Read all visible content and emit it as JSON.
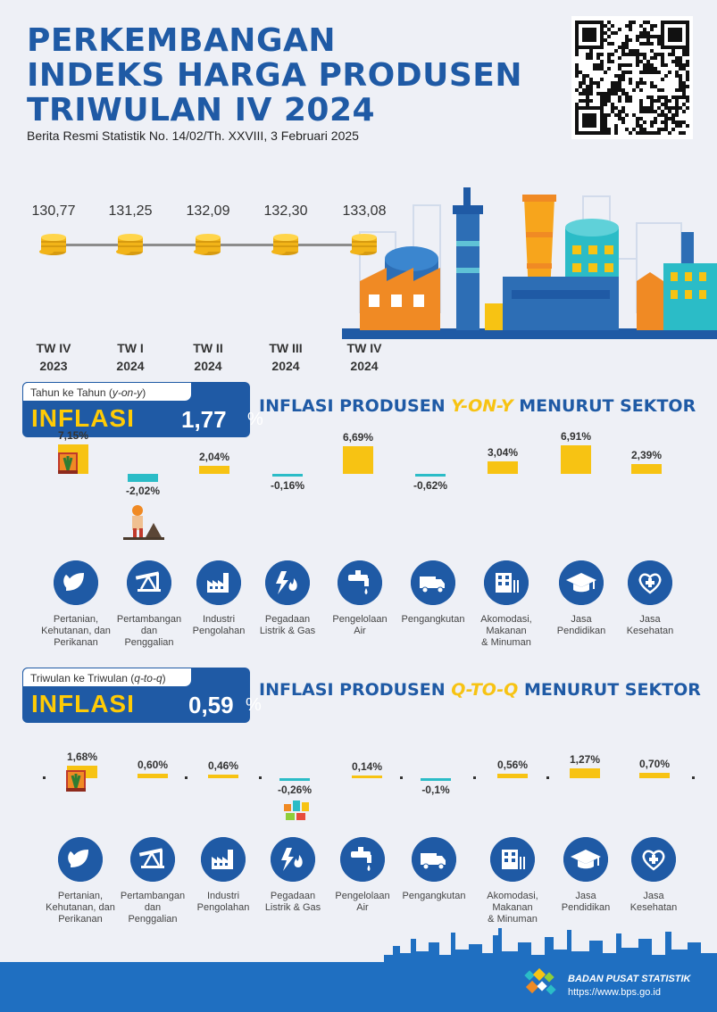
{
  "header": {
    "title_lines": [
      "PERKEMBANGAN",
      "INDEKS HARGA PRODUSEN",
      "TRIWULAN IV 2024"
    ],
    "subtitle": "Berita Resmi Statistik No. 14/02/Th. XXVIII, 3 Februari 2025"
  },
  "ihp_timeline": {
    "values": [
      "130,77",
      "131,25",
      "132,09",
      "132,30",
      "133,08"
    ],
    "periods": [
      {
        "tw": "TW IV",
        "year": "2023"
      },
      {
        "tw": "TW I",
        "year": "2024"
      },
      {
        "tw": "TW II",
        "year": "2024"
      },
      {
        "tw": "TW III",
        "year": "2024"
      },
      {
        "tw": "TW IV",
        "year": "2024"
      }
    ]
  },
  "yoy": {
    "box_caption": "Tahun ke Tahun (",
    "box_caption_em": "y-on-y",
    "box_caption_end": ")",
    "label": "INFLASI",
    "value": "1,77",
    "pct": "%",
    "heading_pre": "INFLASI PRODUSEN ",
    "heading_hl": "Y-ON-Y",
    "heading_post": " MENURUT SEKTOR",
    "labels": [
      "7,15%",
      "-2,02%",
      "2,04%",
      "-0,16%",
      "6,69%",
      "-0,62%",
      "3,04%",
      "6,91%",
      "2,39%"
    ],
    "values": [
      7.15,
      -2.02,
      2.04,
      -0.16,
      6.69,
      -0.62,
      3.04,
      6.91,
      2.39
    ]
  },
  "qtq": {
    "box_caption": "Triwulan ke Triwulan (",
    "box_caption_em": "q-to-q",
    "box_caption_end": ")",
    "label": "INFLASI",
    "value": "0,59",
    "pct": "%",
    "heading_pre": "INFLASI PRODUSEN ",
    "heading_hl": "Q-TO-Q",
    "heading_post": " MENURUT SEKTOR",
    "labels": [
      "1,68%",
      "0,60%",
      "0,46%",
      "-0,26%",
      "0,14%",
      "-0,1%",
      "0,56%",
      "1,27%",
      "0,70%"
    ],
    "values": [
      1.68,
      0.6,
      0.46,
      -0.26,
      0.14,
      -0.1,
      0.56,
      1.27,
      0.7
    ]
  },
  "sectors": [
    {
      "name": [
        "Pertanian,",
        "Kehutanan, dan",
        "Perikanan"
      ],
      "icon": "leaf-icon"
    },
    {
      "name": [
        "Pertambangan",
        "dan",
        "Penggalian"
      ],
      "icon": "oil-pump-icon"
    },
    {
      "name": [
        "Industri",
        "Pengolahan"
      ],
      "icon": "factory-icon"
    },
    {
      "name": [
        "Pegadaan",
        "Listrik & Gas"
      ],
      "icon": "electricity-gas-icon"
    },
    {
      "name": [
        "Pengelolaan",
        "Air"
      ],
      "icon": "water-tap-icon"
    },
    {
      "name": [
        "Pengangkutan"
      ],
      "icon": "truck-icon"
    },
    {
      "name": [
        "Akomodasi,",
        "Makanan",
        "& Minuman"
      ],
      "icon": "hotel-icon"
    },
    {
      "name": [
        "Jasa",
        "Pendidikan"
      ],
      "icon": "graduation-cap-icon"
    },
    {
      "name": [
        "Jasa",
        "Kesehatan"
      ],
      "icon": "health-icon"
    }
  ],
  "footer": {
    "org": "BADAN PUSAT STATISTIK",
    "url": "https://www.bps.go.id"
  },
  "colors": {
    "primary": "#1f5aa5",
    "accent": "#f7c313",
    "negative": "#2bbcc7"
  }
}
